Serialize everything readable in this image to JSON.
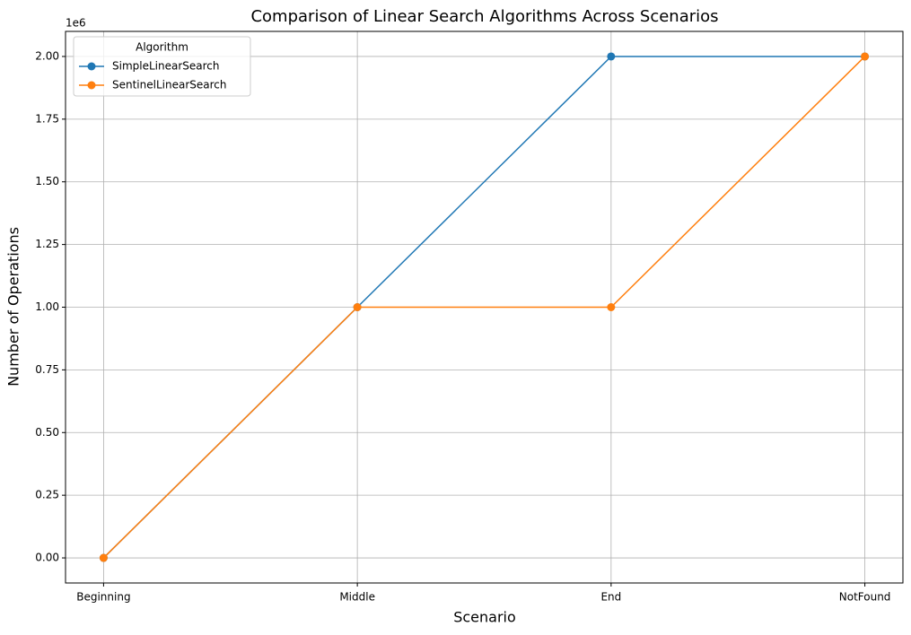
{
  "chart_data": {
    "type": "line",
    "title": "Comparison of Linear Search Algorithms Across Scenarios",
    "x_label": "Scenario",
    "y_label": "Number of Operations",
    "y_offset_label": "1e6",
    "categories": [
      "Beginning",
      "Middle",
      "End",
      "NotFound"
    ],
    "series": [
      {
        "name": "SimpleLinearSearch",
        "color": "#1f77b4",
        "values": [
          0,
          1000000,
          2000000,
          2000000
        ]
      },
      {
        "name": "SentinelLinearSearch",
        "color": "#ff7f0e",
        "values": [
          0,
          1000000,
          1000000,
          2000000
        ]
      }
    ],
    "ylim": [
      -100000,
      2100000
    ],
    "yticks": [
      {
        "value": 0,
        "label": "0.00"
      },
      {
        "value": 250000,
        "label": "0.25"
      },
      {
        "value": 500000,
        "label": "0.50"
      },
      {
        "value": 750000,
        "label": "0.75"
      },
      {
        "value": 1000000,
        "label": "1.00"
      },
      {
        "value": 1250000,
        "label": "1.25"
      },
      {
        "value": 1500000,
        "label": "1.50"
      },
      {
        "value": 1750000,
        "label": "1.75"
      },
      {
        "value": 2000000,
        "label": "2.00"
      }
    ],
    "grid": true,
    "legend_title": "Algorithm",
    "legend_position": "upper left"
  }
}
